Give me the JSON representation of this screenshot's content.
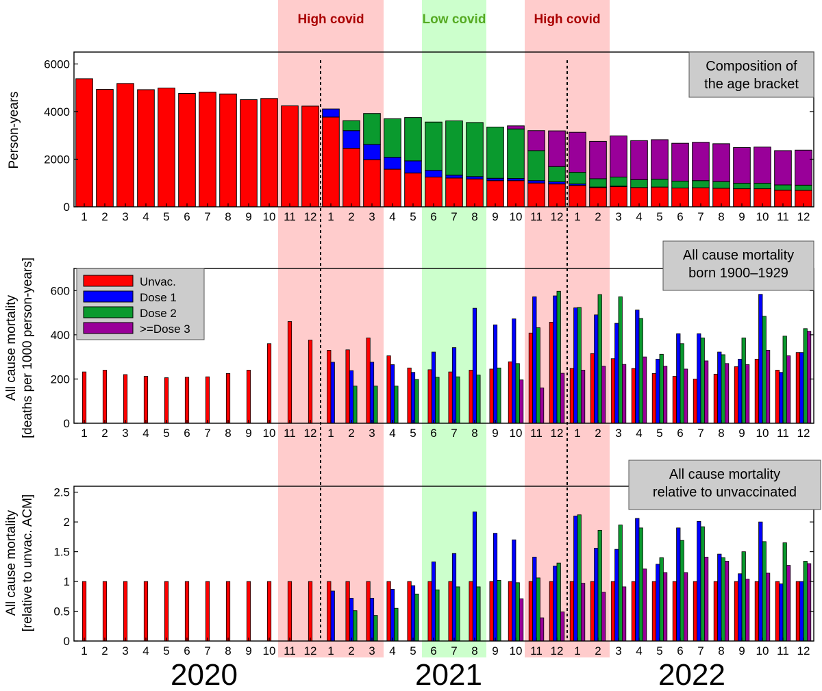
{
  "colors": {
    "unvac": "#ff0000",
    "dose1": "#0000ff",
    "dose2": "#0a9a2e",
    "dose3": "#990099",
    "high_covid_band": "#ffcccc",
    "low_covid_band": "#ccffcc",
    "high_covid_text": "#aa0000",
    "low_covid_text": "#55aa22",
    "info_box": "#cccccc"
  },
  "bands": [
    {
      "label": "High covid",
      "kind": "high",
      "from_index": 10,
      "to_index": 15
    },
    {
      "label": "Low covid",
      "kind": "low",
      "from_index": 17,
      "to_index": 20
    },
    {
      "label": "High covid",
      "kind": "high",
      "from_index": 22,
      "to_index": 26
    }
  ],
  "year_labels": [
    "2020",
    "2021",
    "2022"
  ],
  "legend": [
    "Unvac.",
    "Dose 1",
    "Dose 2",
    ">=Dose 3"
  ],
  "chart_data": [
    {
      "type": "bar",
      "stacked": true,
      "box": [
        "Composition of",
        "the age bracket"
      ],
      "ylabel": [
        "Person-years"
      ],
      "ylim": [
        0,
        6500
      ],
      "yticks": [
        0,
        2000,
        4000,
        6000
      ],
      "categories": [
        "1",
        "2",
        "3",
        "4",
        "5",
        "6",
        "7",
        "8",
        "9",
        "10",
        "11",
        "12",
        "1",
        "2",
        "3",
        "4",
        "5",
        "6",
        "7",
        "8",
        "9",
        "10",
        "11",
        "12",
        "1",
        "2",
        "3",
        "4",
        "5",
        "6",
        "7",
        "8",
        "9",
        "10",
        "11",
        "12"
      ],
      "series": [
        {
          "name": "Unvac.",
          "values": [
            5380,
            4930,
            5180,
            4920,
            4990,
            4760,
            4820,
            4740,
            4500,
            4550,
            4240,
            4230,
            3770,
            2460,
            1980,
            1580,
            1420,
            1250,
            1210,
            1170,
            1100,
            1100,
            1000,
            960,
            900,
            810,
            850,
            810,
            830,
            790,
            800,
            780,
            760,
            760,
            700,
            690
          ]
        },
        {
          "name": "Dose 1",
          "values": [
            0,
            0,
            0,
            0,
            0,
            0,
            0,
            0,
            0,
            0,
            0,
            0,
            340,
            740,
            640,
            500,
            510,
            280,
            120,
            100,
            100,
            90,
            100,
            90,
            60,
            20,
            20,
            0,
            0,
            0,
            0,
            0,
            0,
            0,
            0,
            0
          ]
        },
        {
          "name": "Dose 2",
          "values": [
            0,
            0,
            0,
            0,
            0,
            0,
            0,
            0,
            0,
            0,
            0,
            0,
            0,
            420,
            1300,
            1620,
            1820,
            2030,
            2280,
            2270,
            2150,
            2080,
            1260,
            640,
            490,
            350,
            380,
            330,
            330,
            290,
            300,
            280,
            230,
            230,
            220,
            220
          ]
        },
        {
          "name": ">=Dose 3",
          "values": [
            0,
            0,
            0,
            0,
            0,
            0,
            0,
            0,
            0,
            0,
            0,
            0,
            0,
            0,
            0,
            0,
            0,
            0,
            0,
            0,
            0,
            130,
            840,
            1500,
            1680,
            1570,
            1730,
            1640,
            1660,
            1590,
            1610,
            1590,
            1500,
            1520,
            1440,
            1470
          ]
        }
      ]
    },
    {
      "type": "bar",
      "box": [
        "All cause mortality",
        "born 1900–1929"
      ],
      "ylabel": [
        "All cause mortality",
        "[deaths per 1000 person-years]"
      ],
      "ylim": [
        0,
        700
      ],
      "yticks": [
        0,
        200,
        400,
        600
      ],
      "categories": [
        "1",
        "2",
        "3",
        "4",
        "5",
        "6",
        "7",
        "8",
        "9",
        "10",
        "11",
        "12",
        "1",
        "2",
        "3",
        "4",
        "5",
        "6",
        "7",
        "8",
        "9",
        "10",
        "11",
        "12",
        "1",
        "2",
        "3",
        "4",
        "5",
        "6",
        "7",
        "8",
        "9",
        "10",
        "11",
        "12"
      ],
      "series": [
        {
          "name": "Unvac.",
          "values": [
            232,
            240,
            220,
            212,
            206,
            208,
            210,
            225,
            240,
            360,
            460,
            376,
            330,
            332,
            386,
            305,
            250,
            242,
            232,
            240,
            245,
            278,
            408,
            457,
            248,
            315,
            292,
            248,
            225,
            212,
            200,
            222,
            256,
            290,
            240,
            320
          ]
        },
        {
          "name": "Dose 1",
          "values": [
            null,
            null,
            null,
            null,
            null,
            null,
            null,
            null,
            null,
            null,
            null,
            null,
            276,
            238,
            276,
            265,
            230,
            322,
            342,
            520,
            445,
            472,
            572,
            576,
            522,
            490,
            452,
            512,
            290,
            405,
            405,
            322,
            290,
            583,
            230,
            320
          ]
        },
        {
          "name": "Dose 2",
          "values": [
            null,
            null,
            null,
            null,
            null,
            null,
            null,
            null,
            null,
            null,
            null,
            null,
            null,
            168,
            168,
            168,
            198,
            208,
            210,
            218,
            250,
            270,
            432,
            597,
            524,
            582,
            572,
            474,
            312,
            360,
            386,
            310,
            386,
            484,
            394,
            428
          ]
        },
        {
          "name": ">=Dose 3",
          "values": [
            null,
            null,
            null,
            null,
            null,
            null,
            null,
            null,
            null,
            null,
            null,
            null,
            null,
            null,
            null,
            null,
            null,
            null,
            null,
            null,
            null,
            196,
            160,
            226,
            240,
            258,
            266,
            300,
            258,
            245,
            282,
            270,
            265,
            330,
            305,
            416
          ]
        }
      ]
    },
    {
      "type": "bar",
      "box": [
        "All cause mortality",
        "relative to unvaccinated"
      ],
      "ylabel": [
        "All cause mortality",
        "[relative to unvac. ACM]"
      ],
      "ylim": [
        0,
        2.6
      ],
      "yticks": [
        0,
        0.5,
        1,
        1.5,
        2,
        2.5
      ],
      "categories": [
        "1",
        "2",
        "3",
        "4",
        "5",
        "6",
        "7",
        "8",
        "9",
        "10",
        "11",
        "12",
        "1",
        "2",
        "3",
        "4",
        "5",
        "6",
        "7",
        "8",
        "9",
        "10",
        "11",
        "12",
        "1",
        "2",
        "3",
        "4",
        "5",
        "6",
        "7",
        "8",
        "9",
        "10",
        "11",
        "12"
      ],
      "series": [
        {
          "name": "Unvac.",
          "values": [
            1,
            1,
            1,
            1,
            1,
            1,
            1,
            1,
            1,
            1,
            1,
            1,
            1,
            1,
            1,
            1,
            1,
            1,
            1,
            1,
            1,
            1,
            1,
            1,
            1,
            1,
            1,
            1,
            1,
            1,
            1,
            1,
            1,
            1,
            1,
            1
          ]
        },
        {
          "name": "Dose 1",
          "values": [
            null,
            null,
            null,
            null,
            null,
            null,
            null,
            null,
            null,
            null,
            null,
            null,
            0.84,
            0.72,
            0.72,
            0.87,
            0.93,
            1.33,
            1.47,
            2.17,
            1.81,
            1.7,
            1.41,
            1.26,
            2.1,
            1.56,
            1.54,
            2.06,
            1.29,
            1.9,
            2.01,
            1.46,
            1.13,
            2.0,
            0.96,
            1.0
          ]
        },
        {
          "name": "Dose 2",
          "values": [
            null,
            null,
            null,
            null,
            null,
            null,
            null,
            null,
            null,
            null,
            null,
            null,
            null,
            0.51,
            0.43,
            0.55,
            0.79,
            0.86,
            0.91,
            0.91,
            1.02,
            0.98,
            1.06,
            1.31,
            2.12,
            1.86,
            1.95,
            1.9,
            1.4,
            1.69,
            1.92,
            1.4,
            1.5,
            1.67,
            1.65,
            1.34
          ]
        },
        {
          "name": ">=Dose 3",
          "values": [
            null,
            null,
            null,
            null,
            null,
            null,
            null,
            null,
            null,
            null,
            null,
            null,
            null,
            null,
            null,
            null,
            null,
            null,
            null,
            null,
            null,
            0.71,
            0.39,
            0.49,
            0.97,
            0.82,
            0.91,
            1.21,
            1.15,
            1.15,
            1.41,
            1.34,
            1.04,
            1.14,
            1.27,
            1.3
          ]
        }
      ]
    }
  ]
}
